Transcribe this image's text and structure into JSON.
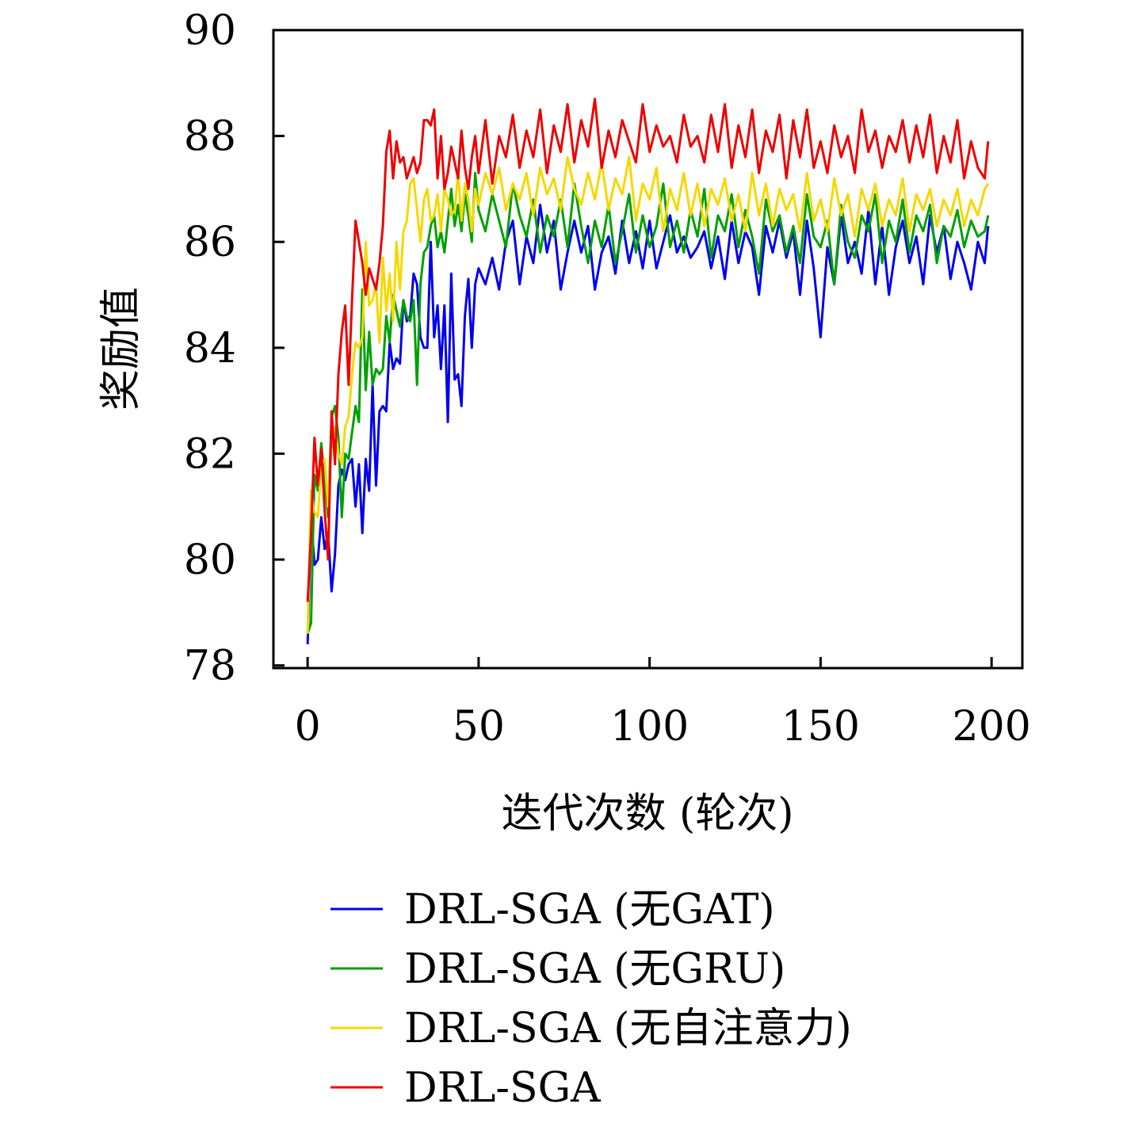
{
  "chart_data": {
    "type": "line",
    "xlabel": "迭代次数 (轮次)",
    "ylabel": "奖励值",
    "xlim": [
      -10,
      209
    ],
    "ylim": [
      77.95,
      90
    ],
    "xticks": [
      0,
      50,
      100,
      150,
      200
    ],
    "yticks": [
      78,
      80,
      82,
      84,
      86,
      88,
      90
    ],
    "grid": false,
    "legend_position": "below",
    "series": [
      {
        "name": "DRL-SGA (无GAT)",
        "color": "#0000ee",
        "x": [
          0,
          1,
          2,
          3,
          4,
          5,
          6,
          7,
          8,
          9,
          10,
          11,
          12,
          13,
          14,
          15,
          16,
          17,
          18,
          19,
          20,
          21,
          22,
          23,
          24,
          25,
          26,
          27,
          28,
          29,
          30,
          31,
          32,
          33,
          34,
          35,
          36,
          37,
          38,
          39,
          40,
          41,
          42,
          43,
          44,
          45,
          46,
          47,
          48,
          49,
          50,
          52,
          54,
          56,
          58,
          60,
          62,
          64,
          66,
          68,
          70,
          72,
          74,
          76,
          78,
          80,
          82,
          84,
          86,
          88,
          90,
          92,
          94,
          96,
          98,
          100,
          102,
          104,
          106,
          108,
          110,
          112,
          114,
          116,
          118,
          120,
          122,
          124,
          126,
          128,
          130,
          132,
          134,
          136,
          138,
          140,
          142,
          144,
          146,
          148,
          150,
          152,
          154,
          156,
          158,
          160,
          162,
          164,
          166,
          168,
          170,
          172,
          174,
          176,
          178,
          180,
          182,
          184,
          186,
          188,
          190,
          192,
          194,
          196,
          198,
          199
        ],
        "values": [
          78.4,
          80.8,
          79.9,
          80.0,
          80.8,
          80.2,
          80.5,
          79.4,
          80.1,
          81.4,
          81.7,
          81.5,
          81.8,
          81.9,
          81.0,
          81.8,
          80.5,
          81.9,
          81.3,
          83.3,
          81.4,
          82.8,
          82.9,
          82.8,
          84.1,
          83.6,
          83.8,
          83.7,
          84.9,
          84.5,
          84.6,
          85.4,
          85.2,
          84.2,
          84.0,
          84.0,
          86.0,
          84.2,
          84.8,
          83.6,
          84.8,
          82.6,
          85.4,
          83.4,
          83.5,
          82.9,
          84.6,
          85.3,
          84.0,
          85.2,
          85.5,
          85.2,
          85.7,
          85.1,
          86.0,
          86.4,
          85.2,
          86.1,
          85.6,
          86.7,
          85.8,
          86.4,
          85.1,
          85.8,
          86.4,
          85.8,
          86.3,
          85.1,
          85.8,
          86.1,
          85.4,
          86.4,
          85.6,
          86.2,
          85.5,
          86.4,
          85.5,
          86.0,
          86.5,
          85.8,
          86.1,
          85.7,
          85.9,
          86.2,
          85.5,
          86.1,
          85.3,
          86.4,
          85.6,
          86.2,
          85.9,
          85.0,
          86.3,
          85.8,
          86.4,
          85.7,
          86.2,
          85.0,
          86.4,
          85.5,
          84.2,
          85.9,
          85.2,
          86.5,
          85.6,
          86.0,
          85.4,
          86.6,
          85.2,
          86.3,
          85.0,
          85.9,
          86.4,
          85.6,
          86.1,
          85.2,
          86.5,
          85.8,
          86.3,
          85.3,
          86.0,
          85.6,
          85.1,
          86.0,
          85.6,
          86.3
        ]
      },
      {
        "name": "DRL-SGA (无GRU)",
        "color": "#00a000",
        "x": [
          0,
          1,
          2,
          3,
          4,
          5,
          6,
          7,
          8,
          9,
          10,
          11,
          12,
          13,
          14,
          15,
          16,
          17,
          18,
          19,
          20,
          21,
          22,
          23,
          24,
          25,
          26,
          27,
          28,
          29,
          30,
          31,
          32,
          33,
          34,
          35,
          36,
          37,
          38,
          39,
          40,
          41,
          42,
          43,
          44,
          45,
          46,
          47,
          48,
          49,
          50,
          52,
          54,
          56,
          58,
          60,
          62,
          64,
          66,
          68,
          70,
          72,
          74,
          76,
          78,
          80,
          82,
          84,
          86,
          88,
          90,
          92,
          94,
          96,
          98,
          100,
          102,
          104,
          106,
          108,
          110,
          112,
          114,
          116,
          118,
          120,
          122,
          124,
          126,
          128,
          130,
          132,
          134,
          136,
          138,
          140,
          142,
          144,
          146,
          148,
          150,
          152,
          154,
          156,
          158,
          160,
          162,
          164,
          166,
          168,
          170,
          172,
          174,
          176,
          178,
          180,
          182,
          184,
          186,
          188,
          190,
          192,
          194,
          196,
          198,
          199
        ],
        "values": [
          78.6,
          78.8,
          81.6,
          81.3,
          82.2,
          81.5,
          80.8,
          82.7,
          82.9,
          82.3,
          80.8,
          82.0,
          81.9,
          82.4,
          82.9,
          82.6,
          85.1,
          83.2,
          84.3,
          83.3,
          83.6,
          83.5,
          83.6,
          84.6,
          84.1,
          85.0,
          84.7,
          84.4,
          84.9,
          84.6,
          84.5,
          84.9,
          83.3,
          85.2,
          85.8,
          85.9,
          86.3,
          86.5,
          85.9,
          86.2,
          85.8,
          86.4,
          87.0,
          86.3,
          86.7,
          86.2,
          86.9,
          86.5,
          86.0,
          87.3,
          86.6,
          86.2,
          86.9,
          86.4,
          85.9,
          87.1,
          86.5,
          86.1,
          86.8,
          85.8,
          86.5,
          86.1,
          86.8,
          85.9,
          87.1,
          86.3,
          85.6,
          86.4,
          85.9,
          86.7,
          85.6,
          86.2,
          86.9,
          85.8,
          86.5,
          85.9,
          86.3,
          87.1,
          85.9,
          86.4,
          85.8,
          86.6,
          86.1,
          87.0,
          85.7,
          86.5,
          86.2,
          86.9,
          85.9,
          86.6,
          86.1,
          85.4,
          86.8,
          86.2,
          86.5,
          85.8,
          86.3,
          85.6,
          86.9,
          86.1,
          85.9,
          86.4,
          85.2,
          86.7,
          86.0,
          85.7,
          86.5,
          86.2,
          86.9,
          85.6,
          86.4,
          86.0,
          86.8,
          85.8,
          86.5,
          86.2,
          86.7,
          85.6,
          86.3,
          86.1,
          86.6,
          85.9,
          86.4,
          86.1,
          86.2,
          86.5
        ]
      },
      {
        "name": "DRL-SGA (无自注意力)",
        "color": "#f5d800",
        "x": [
          0,
          1,
          2,
          3,
          4,
          5,
          6,
          7,
          8,
          9,
          10,
          11,
          12,
          13,
          14,
          15,
          16,
          17,
          18,
          19,
          20,
          21,
          22,
          23,
          24,
          25,
          26,
          27,
          28,
          29,
          30,
          31,
          32,
          33,
          34,
          35,
          36,
          37,
          38,
          39,
          40,
          41,
          42,
          43,
          44,
          45,
          46,
          47,
          48,
          49,
          50,
          52,
          54,
          56,
          58,
          60,
          62,
          64,
          66,
          68,
          70,
          72,
          74,
          76,
          78,
          80,
          82,
          84,
          86,
          88,
          90,
          92,
          94,
          96,
          98,
          100,
          102,
          104,
          106,
          108,
          110,
          112,
          114,
          116,
          118,
          120,
          122,
          124,
          126,
          128,
          130,
          132,
          134,
          136,
          138,
          140,
          142,
          144,
          146,
          148,
          150,
          152,
          154,
          156,
          158,
          160,
          162,
          164,
          166,
          168,
          170,
          172,
          174,
          176,
          178,
          180,
          182,
          184,
          186,
          188,
          190,
          192,
          194,
          196,
          198,
          199
        ],
        "values": [
          78.6,
          81.3,
          80.9,
          80.8,
          81.8,
          81.9,
          81.0,
          82.2,
          82.5,
          82.0,
          81.8,
          82.5,
          82.7,
          83.5,
          84.1,
          84.0,
          84.2,
          86.0,
          84.8,
          84.9,
          85.2,
          84.1,
          85.7,
          84.7,
          85.4,
          84.5,
          86.0,
          85.1,
          86.2,
          86.4,
          87.1,
          87.2,
          86.6,
          86.0,
          86.8,
          87.0,
          86.4,
          86.5,
          86.9,
          86.2,
          87.0,
          86.8,
          86.5,
          86.6,
          87.3,
          86.4,
          87.1,
          86.8,
          86.2,
          87.0,
          86.7,
          87.3,
          86.9,
          87.4,
          86.6,
          87.1,
          86.8,
          87.3,
          86.5,
          87.4,
          86.9,
          87.2,
          86.6,
          87.6,
          87.0,
          86.7,
          87.3,
          86.8,
          87.5,
          86.6,
          87.2,
          86.9,
          87.6,
          86.4,
          87.1,
          86.8,
          87.4,
          86.2,
          87.0,
          86.6,
          87.3,
          86.5,
          87.1,
          86.3,
          87.0,
          86.7,
          87.2,
          86.4,
          86.9,
          86.2,
          87.3,
          86.5,
          87.1,
          86.3,
          87.0,
          86.6,
          86.9,
          86.2,
          87.3,
          86.4,
          86.8,
          86.2,
          87.2,
          86.5,
          86.9,
          86.1,
          87.0,
          86.6,
          87.1,
          86.3,
          86.8,
          86.5,
          87.2,
          86.2,
          86.9,
          86.6,
          87.0,
          86.3,
          86.8,
          86.5,
          87.0,
          86.3,
          86.8,
          86.5,
          87.0,
          87.1
        ]
      },
      {
        "name": "DRL-SGA",
        "color": "#ee0000",
        "x": [
          0,
          1,
          2,
          3,
          4,
          5,
          6,
          7,
          8,
          9,
          10,
          11,
          12,
          13,
          14,
          15,
          16,
          17,
          18,
          19,
          20,
          21,
          22,
          23,
          24,
          25,
          26,
          27,
          28,
          29,
          30,
          31,
          32,
          33,
          34,
          35,
          36,
          37,
          38,
          39,
          40,
          41,
          42,
          43,
          44,
          45,
          46,
          47,
          48,
          49,
          50,
          52,
          54,
          56,
          58,
          60,
          62,
          64,
          66,
          68,
          70,
          72,
          74,
          76,
          78,
          80,
          82,
          84,
          86,
          88,
          90,
          92,
          94,
          96,
          98,
          100,
          102,
          104,
          106,
          108,
          110,
          112,
          114,
          116,
          118,
          120,
          122,
          124,
          126,
          128,
          130,
          132,
          134,
          136,
          138,
          140,
          142,
          144,
          146,
          148,
          150,
          152,
          154,
          156,
          158,
          160,
          162,
          164,
          166,
          168,
          170,
          172,
          174,
          176,
          178,
          180,
          182,
          184,
          186,
          188,
          190,
          192,
          194,
          196,
          198,
          199
        ],
        "values": [
          79.2,
          80.5,
          82.3,
          81.4,
          82.1,
          80.9,
          80.0,
          82.8,
          81.8,
          83.5,
          84.3,
          84.8,
          83.3,
          84.9,
          86.4,
          86.0,
          85.6,
          85.0,
          85.5,
          85.3,
          85.1,
          85.6,
          86.3,
          87.7,
          88.1,
          87.2,
          87.9,
          87.5,
          87.6,
          87.2,
          87.4,
          87.6,
          87.3,
          87.5,
          88.3,
          88.3,
          88.2,
          88.5,
          87.2,
          88.0,
          87.0,
          87.3,
          87.8,
          87.5,
          87.2,
          88.1,
          87.4,
          87.0,
          87.6,
          88.0,
          87.3,
          88.3,
          87.1,
          88.0,
          87.6,
          88.4,
          87.4,
          88.1,
          87.6,
          88.5,
          87.3,
          88.2,
          87.7,
          88.6,
          87.5,
          88.3,
          87.8,
          88.7,
          87.4,
          88.1,
          87.6,
          88.3,
          87.9,
          87.5,
          88.6,
          87.7,
          88.2,
          87.8,
          88.0,
          87.5,
          88.4,
          87.8,
          88.0,
          87.5,
          88.4,
          87.7,
          88.6,
          87.4,
          88.2,
          87.6,
          88.5,
          87.3,
          88.1,
          87.7,
          88.4,
          87.2,
          88.3,
          87.6,
          88.5,
          87.4,
          87.9,
          87.3,
          88.2,
          87.6,
          88.0,
          87.3,
          88.5,
          87.7,
          88.1,
          87.4,
          88.0,
          87.7,
          88.3,
          87.5,
          88.2,
          87.6,
          88.4,
          87.3,
          88.0,
          87.5,
          88.3,
          87.2,
          87.9,
          87.4,
          87.2,
          87.9
        ]
      }
    ]
  }
}
